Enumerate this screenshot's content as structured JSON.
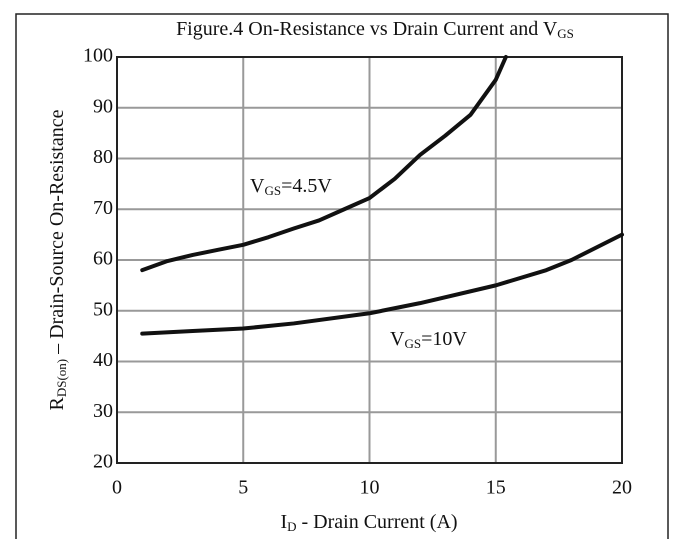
{
  "chart_data": {
    "type": "line",
    "title": [
      "Figure.4 On-Resistance vs Drain Current and V",
      "GS"
    ],
    "x_label": [
      "I",
      "D",
      " - Drain Current (A)"
    ],
    "y_label": [
      "R",
      "DS(on)",
      " – Drain-Source On-Resistance"
    ],
    "xlim": [
      0,
      20
    ],
    "xticks": [
      0,
      5,
      10,
      15,
      20
    ],
    "ylim": [
      20,
      100
    ],
    "yticks": [
      20,
      30,
      40,
      50,
      60,
      70,
      80,
      90,
      100
    ],
    "grid": true,
    "series": [
      {
        "label": [
          "V",
          "GS",
          "=4.5V"
        ],
        "color": "#111111",
        "x": [
          1,
          2,
          3,
          4,
          5,
          6,
          7,
          8,
          9,
          10,
          11,
          12,
          13,
          14,
          15,
          15.4
        ],
        "values": [
          58,
          59.8,
          61,
          62,
          63,
          64.5,
          66.2,
          67.8,
          70,
          72.2,
          76,
          80.7,
          84.5,
          88.6,
          95.5,
          100
        ]
      },
      {
        "label": [
          "V",
          "GS",
          "=10V"
        ],
        "color": "#111111",
        "x": [
          1,
          3,
          5,
          7,
          10,
          12,
          15,
          17,
          18,
          20
        ],
        "values": [
          45.5,
          46,
          46.5,
          47.5,
          49.5,
          51.5,
          55,
          58,
          60,
          65
        ]
      }
    ]
  }
}
